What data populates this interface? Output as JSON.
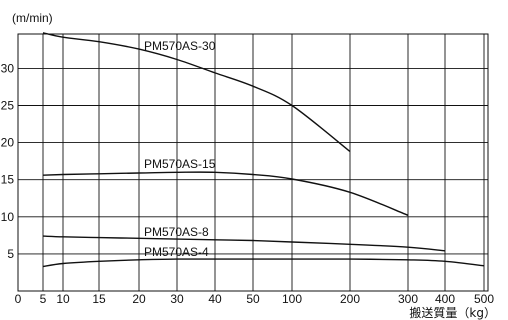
{
  "chart_data": {
    "type": "line",
    "y_unit": "(m/min)",
    "xlabel": "搬送質量（kg）",
    "x_scale": "nonlinear",
    "x_ticks": [
      0,
      5,
      10,
      15,
      20,
      30,
      40,
      50,
      100,
      200,
      300,
      400,
      500
    ],
    "y_ticks": [
      5,
      10,
      15,
      20,
      25,
      30
    ],
    "ylim": [
      0,
      35
    ],
    "grid": true,
    "series": [
      {
        "name": "PM570AS-30",
        "x": [
          5,
          10,
          15,
          20,
          30,
          40,
          50,
          100,
          200
        ],
        "y": [
          34.8,
          34.2,
          33.6,
          32.6,
          31.2,
          29.4,
          27.6,
          25.0,
          18.8
        ]
      },
      {
        "name": "PM570AS-15",
        "x": [
          5,
          10,
          15,
          20,
          30,
          40,
          50,
          100,
          200,
          300
        ],
        "y": [
          15.6,
          15.7,
          15.8,
          15.9,
          16.0,
          16.0,
          15.7,
          15.1,
          13.3,
          10.2
        ]
      },
      {
        "name": "PM570AS-8",
        "x": [
          5,
          10,
          15,
          20,
          30,
          40,
          50,
          100,
          200,
          300,
          400
        ],
        "y": [
          7.4,
          7.3,
          7.2,
          7.1,
          7.0,
          6.9,
          6.8,
          6.6,
          6.3,
          5.9,
          5.4
        ]
      },
      {
        "name": "PM570AS-4",
        "x": [
          5,
          10,
          15,
          20,
          30,
          40,
          50,
          100,
          200,
          300,
          400,
          500
        ],
        "y": [
          3.3,
          3.7,
          4.0,
          4.2,
          4.3,
          4.3,
          4.3,
          4.3,
          4.3,
          4.2,
          4.0,
          3.4
        ]
      }
    ]
  }
}
